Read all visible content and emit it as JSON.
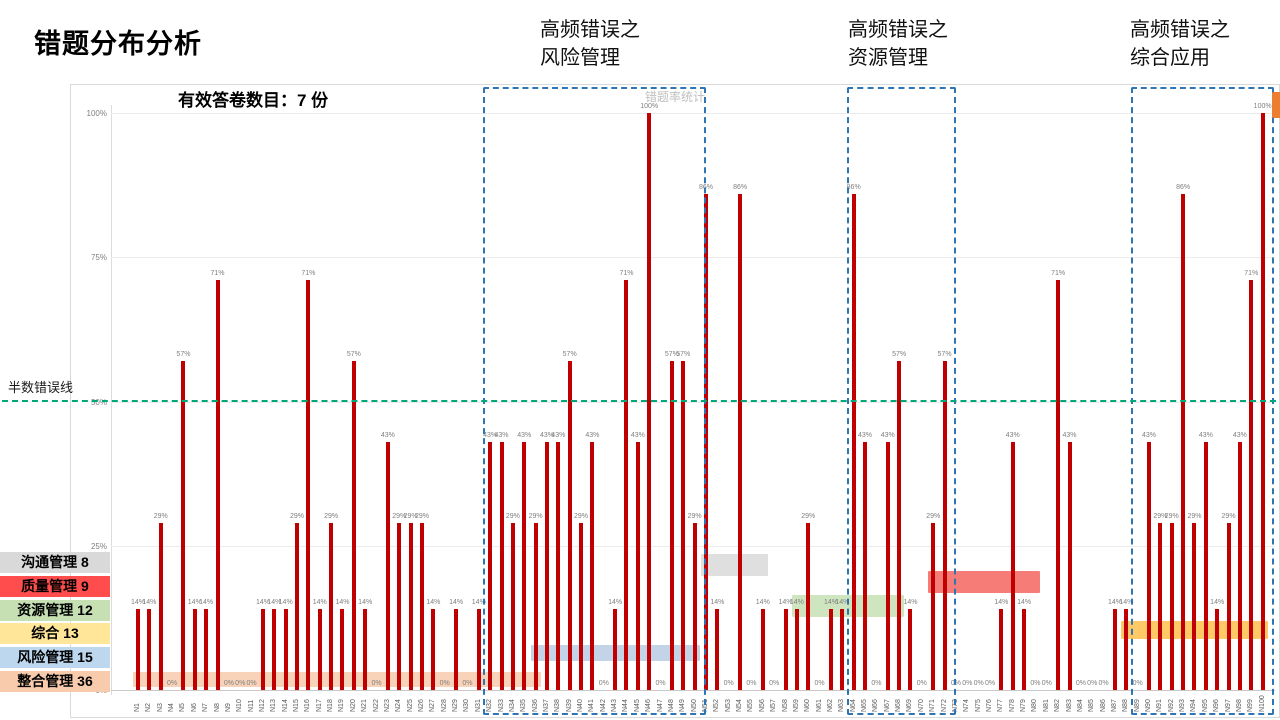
{
  "page": {
    "title": "错题分布分析",
    "survey_note": "有效答卷数目：7 份",
    "half_error_line_label": "半数错误线"
  },
  "legend": {
    "items": [
      {
        "label": "沟通管理",
        "count": 8,
        "color": "#D9D9D9"
      },
      {
        "label": "质量管理",
        "count": 9,
        "color": "#FF4D4D"
      },
      {
        "label": "资源管理",
        "count": 12,
        "color": "#C6E0B4"
      },
      {
        "label": "综合",
        "count": 13,
        "color": "#FFE699"
      },
      {
        "label": "风险管理",
        "count": 15,
        "color": "#BDD7EE"
      },
      {
        "label": "整合管理",
        "count": 36,
        "color": "#F8CBAD"
      }
    ]
  },
  "chart_data": {
    "type": "bar",
    "title": "错题率统计",
    "xlabel": "",
    "ylabel": "",
    "ylim": [
      0,
      100
    ],
    "yticks": [
      "0%",
      "25%",
      "50%",
      "75%",
      "100%"
    ],
    "grid": true,
    "bar_color": "#C00000",
    "value_suffix": "%",
    "categories": [
      "N1",
      "N2",
      "N3",
      "N4",
      "N5",
      "N6",
      "N7",
      "N8",
      "N9",
      "N10",
      "N11",
      "N12",
      "N13",
      "N14",
      "N15",
      "N16",
      "N17",
      "N18",
      "N19",
      "N20",
      "N21",
      "N22",
      "N23",
      "N24",
      "N25",
      "N26",
      "N27",
      "N28",
      "N29",
      "N30",
      "N31",
      "N32",
      "N33",
      "N34",
      "N35",
      "N36",
      "N37",
      "N38",
      "N39",
      "N40",
      "N41",
      "N42",
      "N43",
      "N44",
      "N45",
      "N46",
      "N47",
      "N48",
      "N49",
      "N50",
      "N51",
      "N52",
      "N53",
      "N54",
      "N55",
      "N56",
      "N57",
      "N58",
      "N59",
      "N60",
      "N61",
      "N62",
      "N63",
      "N64",
      "N65",
      "N66",
      "N67",
      "N68",
      "N69",
      "N70",
      "N71",
      "N72",
      "N73",
      "N74",
      "N75",
      "N76",
      "N77",
      "N78",
      "N79",
      "N80",
      "N81",
      "N82",
      "N83",
      "N84",
      "N85",
      "N86",
      "N87",
      "N88",
      "N89",
      "N90",
      "N91",
      "N92",
      "N93",
      "N94",
      "N95",
      "N96",
      "N97",
      "N98",
      "N99",
      "N100"
    ],
    "values": [
      14,
      14,
      29,
      0,
      57,
      14,
      14,
      71,
      0,
      0,
      0,
      14,
      14,
      14,
      29,
      71,
      14,
      29,
      14,
      57,
      14,
      0,
      43,
      29,
      29,
      29,
      14,
      0,
      14,
      0,
      14,
      43,
      43,
      29,
      43,
      29,
      43,
      43,
      57,
      29,
      43,
      0,
      14,
      71,
      43,
      100,
      0,
      57,
      57,
      29,
      86,
      14,
      0,
      86,
      0,
      14,
      0,
      14,
      14,
      29,
      0,
      14,
      14,
      86,
      43,
      0,
      43,
      57,
      14,
      0,
      29,
      57,
      0,
      0,
      0,
      0,
      14,
      43,
      14,
      0,
      0,
      71,
      43,
      0,
      0,
      0,
      14,
      14,
      0,
      43,
      29,
      29,
      86,
      29,
      43,
      14,
      29,
      43,
      71,
      100
    ],
    "reference_line": {
      "value": 50,
      "label": "半数错误线",
      "color": "#00A878"
    },
    "category_bands": [
      {
        "category": "整合管理",
        "from": 1,
        "to": 36,
        "low": 0.5,
        "high": 3.2,
        "color": "#F8CBAD"
      },
      {
        "category": "风险管理",
        "from": 36,
        "to": 50,
        "low": 5.0,
        "high": 7.8,
        "color": "#B8CCE4"
      },
      {
        "category": "沟通管理",
        "from": 51,
        "to": 56,
        "low": 19.8,
        "high": 23.6,
        "color": "#D9D9D9"
      },
      {
        "category": "资源管理",
        "from": 59,
        "to": 68,
        "low": 12.6,
        "high": 16.4,
        "color": "#C6E0B4"
      },
      {
        "category": "质量管理",
        "from": 71,
        "to": 80,
        "low": 16.8,
        "high": 20.6,
        "color": "#F4655F"
      },
      {
        "category": "综合",
        "from": 88,
        "to": 100,
        "low": 8.8,
        "high": 12.0,
        "color": "#FFC04D"
      }
    ],
    "highlight_regions": [
      {
        "title_line1": "高频错误之",
        "title_line2": "风险管理",
        "from": 32,
        "to": 50
      },
      {
        "title_line1": "高频错误之",
        "title_line2": "资源管理",
        "from": 64,
        "to": 72
      },
      {
        "title_line1": "高频错误之",
        "title_line2": "综合应用",
        "from": 89,
        "to": 100
      }
    ],
    "legend_position": "bottom-left"
  }
}
